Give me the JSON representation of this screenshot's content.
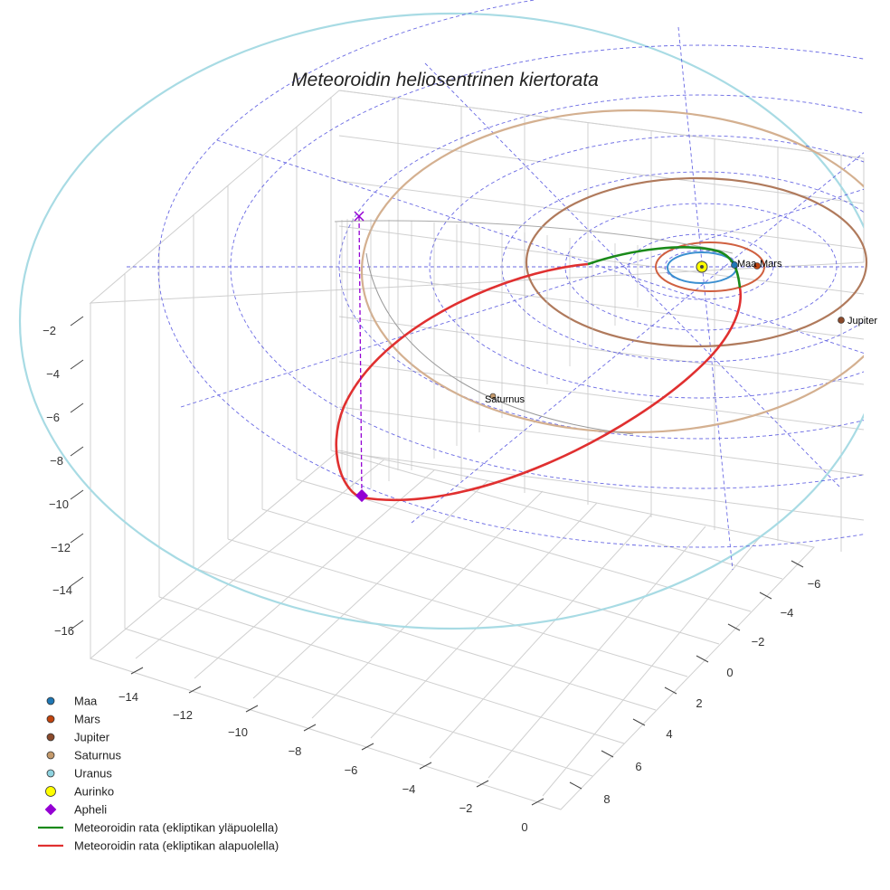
{
  "chart_data": {
    "type": "line",
    "subtype": "3d-orbit",
    "title": "Meteoroidin heliosentrinen kiertorata",
    "xlabel": "",
    "ylabel": "",
    "zlabel": "",
    "x_ticks": [
      "−14",
      "−12",
      "−10",
      "−8",
      "−6",
      "−4",
      "−2",
      "0"
    ],
    "y_ticks": [
      "−6",
      "−4",
      "−2",
      "0",
      "2",
      "4",
      "6",
      "8"
    ],
    "z_ticks": [
      "−2",
      "−4",
      "−6",
      "−8",
      "−10",
      "−12",
      "−14",
      "−16"
    ],
    "grid": true,
    "legend_position": "bottom-left",
    "planets": [
      {
        "name": "Maa",
        "color": "#1f77b4",
        "orbit_radius_au": 1.0
      },
      {
        "name": "Mars",
        "color": "#c1440e",
        "orbit_radius_au": 1.52
      },
      {
        "name": "Jupiter",
        "color": "#8b4a2b",
        "orbit_radius_au": 5.2
      },
      {
        "name": "Saturnus",
        "color": "#c49a6c",
        "orbit_radius_au": 9.58
      },
      {
        "name": "Uranus",
        "color": "#8fd3e0",
        "orbit_radius_au": 19.2
      }
    ],
    "sun": {
      "name": "Aurinko",
      "color": "#ffff00",
      "x": 0,
      "y": 0,
      "z": 0
    },
    "aphelion": {
      "name": "Apheli",
      "color": "#9400d3",
      "x": -13.1,
      "y": -3.5,
      "z": -8.9
    },
    "series": [
      {
        "name": "Meteoroidin rata (ekliptikan yläpuolella)",
        "color": "#1a8a1a"
      },
      {
        "name": "Meteoroidin rata (ekliptikan alapuolella)",
        "color": "#e03030"
      }
    ]
  },
  "legend": [
    {
      "label": "Maa",
      "color": "#1f77b4",
      "kind": "dot"
    },
    {
      "label": "Mars",
      "color": "#c1440e",
      "kind": "dot"
    },
    {
      "label": "Jupiter",
      "color": "#8b4a2b",
      "kind": "dot"
    },
    {
      "label": "Saturnus",
      "color": "#c49a6c",
      "kind": "dot"
    },
    {
      "label": "Uranus",
      "color": "#8fd3e0",
      "kind": "dot"
    },
    {
      "label": "Aurinko",
      "color": "#ffff00",
      "kind": "bigdot"
    },
    {
      "label": "Apheli",
      "color": "#9400d3",
      "kind": "diamond"
    },
    {
      "label": "Meteoroidin rata (ekliptikan yläpuolella)",
      "color": "#1a8a1a",
      "kind": "line"
    },
    {
      "label": "Meteoroidin rata (ekliptikan alapuolella)",
      "color": "#e03030",
      "kind": "line"
    }
  ]
}
